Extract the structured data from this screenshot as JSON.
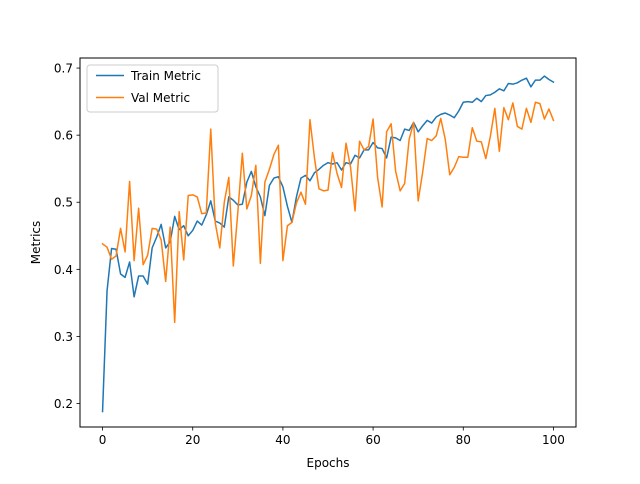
{
  "chart_data": {
    "type": "line",
    "title": "",
    "xlabel": "Epochs",
    "ylabel": "Metrics",
    "xlim": [
      -5,
      105
    ],
    "ylim": [
      0.165,
      0.715
    ],
    "xticks": [
      0,
      20,
      40,
      60,
      80,
      100
    ],
    "yticks": [
      0.2,
      0.3,
      0.4,
      0.5,
      0.6,
      0.7
    ],
    "grid": false,
    "legend_position": "top-left",
    "series": [
      {
        "name": "Train Metric",
        "color": "#1f77b4",
        "x": [
          0,
          1,
          2,
          3,
          4,
          5,
          6,
          7,
          8,
          9,
          10,
          11,
          12,
          13,
          14,
          15,
          16,
          17,
          18,
          19,
          20,
          21,
          22,
          23,
          24,
          25,
          26,
          27,
          28,
          29,
          30,
          31,
          32,
          33,
          34,
          35,
          36,
          37,
          38,
          39,
          40,
          41,
          42,
          43,
          44,
          45,
          46,
          47,
          48,
          49,
          50,
          51,
          52,
          53,
          54,
          55,
          56,
          57,
          58,
          59,
          60,
          61,
          62,
          63,
          64,
          65,
          66,
          67,
          68,
          69,
          70,
          71,
          72,
          73,
          74,
          75,
          76,
          77,
          78,
          79,
          80,
          81,
          82,
          83,
          84,
          85,
          86,
          87,
          88,
          89,
          90,
          91,
          92,
          93,
          94,
          95,
          96,
          97,
          98,
          99,
          100
        ],
        "values": [
          0.188,
          0.368,
          0.431,
          0.43,
          0.393,
          0.388,
          0.411,
          0.359,
          0.39,
          0.39,
          0.378,
          0.432,
          0.448,
          0.467,
          0.432,
          0.441,
          0.479,
          0.459,
          0.465,
          0.45,
          0.458,
          0.472,
          0.466,
          0.481,
          0.502,
          0.472,
          0.469,
          0.463,
          0.508,
          0.503,
          0.496,
          0.497,
          0.53,
          0.546,
          0.523,
          0.508,
          0.48,
          0.525,
          0.536,
          0.538,
          0.523,
          0.494,
          0.47,
          0.508,
          0.536,
          0.54,
          0.532,
          0.544,
          0.549,
          0.555,
          0.559,
          0.557,
          0.559,
          0.548,
          0.559,
          0.557,
          0.57,
          0.566,
          0.578,
          0.578,
          0.589,
          0.581,
          0.58,
          0.566,
          0.597,
          0.596,
          0.592,
          0.609,
          0.607,
          0.619,
          0.605,
          0.614,
          0.622,
          0.618,
          0.627,
          0.631,
          0.633,
          0.63,
          0.626,
          0.636,
          0.649,
          0.65,
          0.649,
          0.655,
          0.65,
          0.659,
          0.66,
          0.664,
          0.669,
          0.666,
          0.677,
          0.676,
          0.678,
          0.682,
          0.685,
          0.672,
          0.682,
          0.682,
          0.688,
          0.683,
          0.679
        ]
      },
      {
        "name": "Val Metric",
        "color": "#ff7f0e",
        "x": [
          0,
          1,
          2,
          3,
          4,
          5,
          6,
          7,
          8,
          9,
          10,
          11,
          12,
          13,
          14,
          15,
          16,
          17,
          18,
          19,
          20,
          21,
          22,
          23,
          24,
          25,
          26,
          27,
          28,
          29,
          30,
          31,
          32,
          33,
          34,
          35,
          36,
          37,
          38,
          39,
          40,
          41,
          42,
          43,
          44,
          45,
          46,
          47,
          48,
          49,
          50,
          51,
          52,
          53,
          54,
          55,
          56,
          57,
          58,
          59,
          60,
          61,
          62,
          63,
          64,
          65,
          66,
          67,
          68,
          69,
          70,
          71,
          72,
          73,
          74,
          75,
          76,
          77,
          78,
          79,
          80,
          81,
          82,
          83,
          84,
          85,
          86,
          87,
          88,
          89,
          90,
          91,
          92,
          93,
          94,
          95,
          96,
          97,
          98,
          99,
          100
        ],
        "values": [
          0.438,
          0.433,
          0.415,
          0.42,
          0.461,
          0.426,
          0.531,
          0.413,
          0.491,
          0.407,
          0.421,
          0.461,
          0.46,
          0.444,
          0.382,
          0.463,
          0.321,
          0.486,
          0.414,
          0.51,
          0.511,
          0.508,
          0.483,
          0.484,
          0.609,
          0.469,
          0.432,
          0.5,
          0.537,
          0.405,
          0.485,
          0.573,
          0.49,
          0.51,
          0.555,
          0.409,
          0.53,
          0.549,
          0.571,
          0.585,
          0.413,
          0.465,
          0.47,
          0.499,
          0.515,
          0.497,
          0.623,
          0.566,
          0.52,
          0.517,
          0.518,
          0.574,
          0.543,
          0.522,
          0.588,
          0.552,
          0.487,
          0.591,
          0.578,
          0.583,
          0.624,
          0.537,
          0.493,
          0.605,
          0.617,
          0.546,
          0.517,
          0.528,
          0.594,
          0.619,
          0.502,
          0.545,
          0.595,
          0.592,
          0.599,
          0.625,
          0.594,
          0.541,
          0.552,
          0.568,
          0.567,
          0.567,
          0.611,
          0.591,
          0.59,
          0.565,
          0.598,
          0.64,
          0.576,
          0.641,
          0.623,
          0.648,
          0.613,
          0.609,
          0.64,
          0.619,
          0.649,
          0.647,
          0.624,
          0.639,
          0.622
        ]
      }
    ]
  }
}
